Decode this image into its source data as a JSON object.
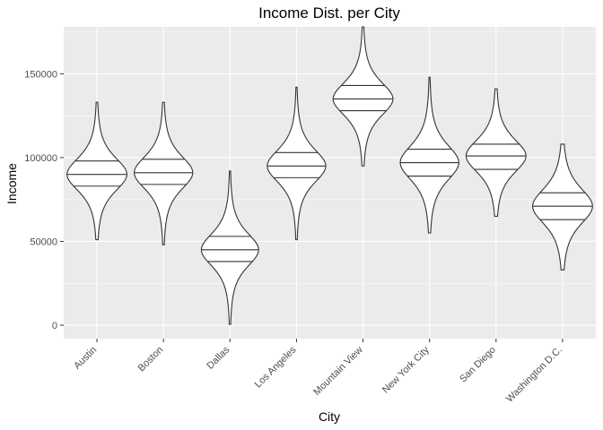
{
  "chart_data": {
    "type": "violin",
    "title": "Income Dist. per City",
    "xlabel": "City",
    "ylabel": "Income",
    "ylim": [
      -8000,
      178000
    ],
    "y_ticks": [
      0,
      50000,
      100000,
      150000
    ],
    "y_tick_labels": [
      "0",
      "50000",
      "100000",
      "150000"
    ],
    "grid": true,
    "background": "#ebebeb",
    "grid_color": "#ffffff",
    "outline_color": "#333333",
    "fill_color": "#ffffff",
    "categories": [
      "Austin",
      "Boston",
      "Dallas",
      "Los Angeles",
      "Mountain View",
      "New York City",
      "San Diego",
      "Washington D.C."
    ],
    "series": [
      {
        "category": "Austin",
        "min": 51000,
        "max": 133000,
        "q25": 83000,
        "median": 90000,
        "q75": 98000,
        "max_half_width": 0.45
      },
      {
        "category": "Boston",
        "min": 48000,
        "max": 133000,
        "q25": 84000,
        "median": 91000,
        "q75": 99000,
        "max_half_width": 0.44
      },
      {
        "category": "Dallas",
        "min": 500,
        "max": 92000,
        "q25": 38000,
        "median": 45000,
        "q75": 53000,
        "max_half_width": 0.43
      },
      {
        "category": "Los Angeles",
        "min": 51000,
        "max": 142000,
        "q25": 88000,
        "median": 95000,
        "q75": 103000,
        "max_half_width": 0.44
      },
      {
        "category": "Mountain View",
        "min": 95000,
        "max": 178000,
        "q25": 128000,
        "median": 135000,
        "q75": 143000,
        "max_half_width": 0.45
      },
      {
        "category": "New York City",
        "min": 55000,
        "max": 148000,
        "q25": 89000,
        "median": 97000,
        "q75": 105000,
        "max_half_width": 0.44
      },
      {
        "category": "San Diego",
        "min": 65000,
        "max": 141000,
        "q25": 93000,
        "median": 101000,
        "q75": 108000,
        "max_half_width": 0.45
      },
      {
        "category": "Washington D.C.",
        "min": 33000,
        "max": 108000,
        "q25": 63000,
        "median": 71000,
        "q75": 79000,
        "max_half_width": 0.45
      }
    ]
  }
}
